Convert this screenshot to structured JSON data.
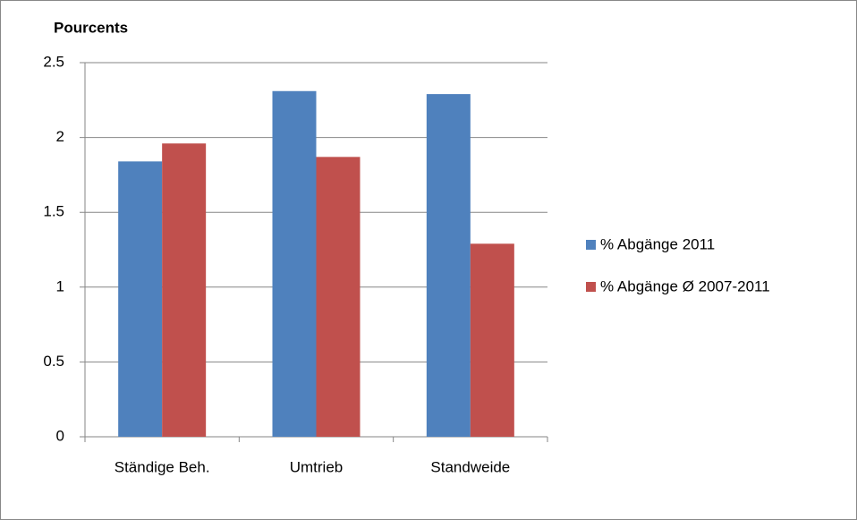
{
  "chart_data": {
    "type": "bar",
    "y_label": "Pourcents",
    "categories": [
      "Ständige Beh.",
      "Umtrieb",
      "Standweide"
    ],
    "series": [
      {
        "name": "% Abgänge 2011",
        "color": "#4f81bd",
        "values": [
          1.84,
          2.31,
          2.29
        ]
      },
      {
        "name": "% Abgänge Ø 2007-2011",
        "color": "#c0504d",
        "values": [
          1.96,
          1.87,
          1.29
        ]
      }
    ],
    "ylim": [
      0,
      2.5
    ],
    "yticks": [
      0,
      0.5,
      1,
      1.5,
      2,
      2.5
    ],
    "grid": true,
    "legend": "right"
  }
}
